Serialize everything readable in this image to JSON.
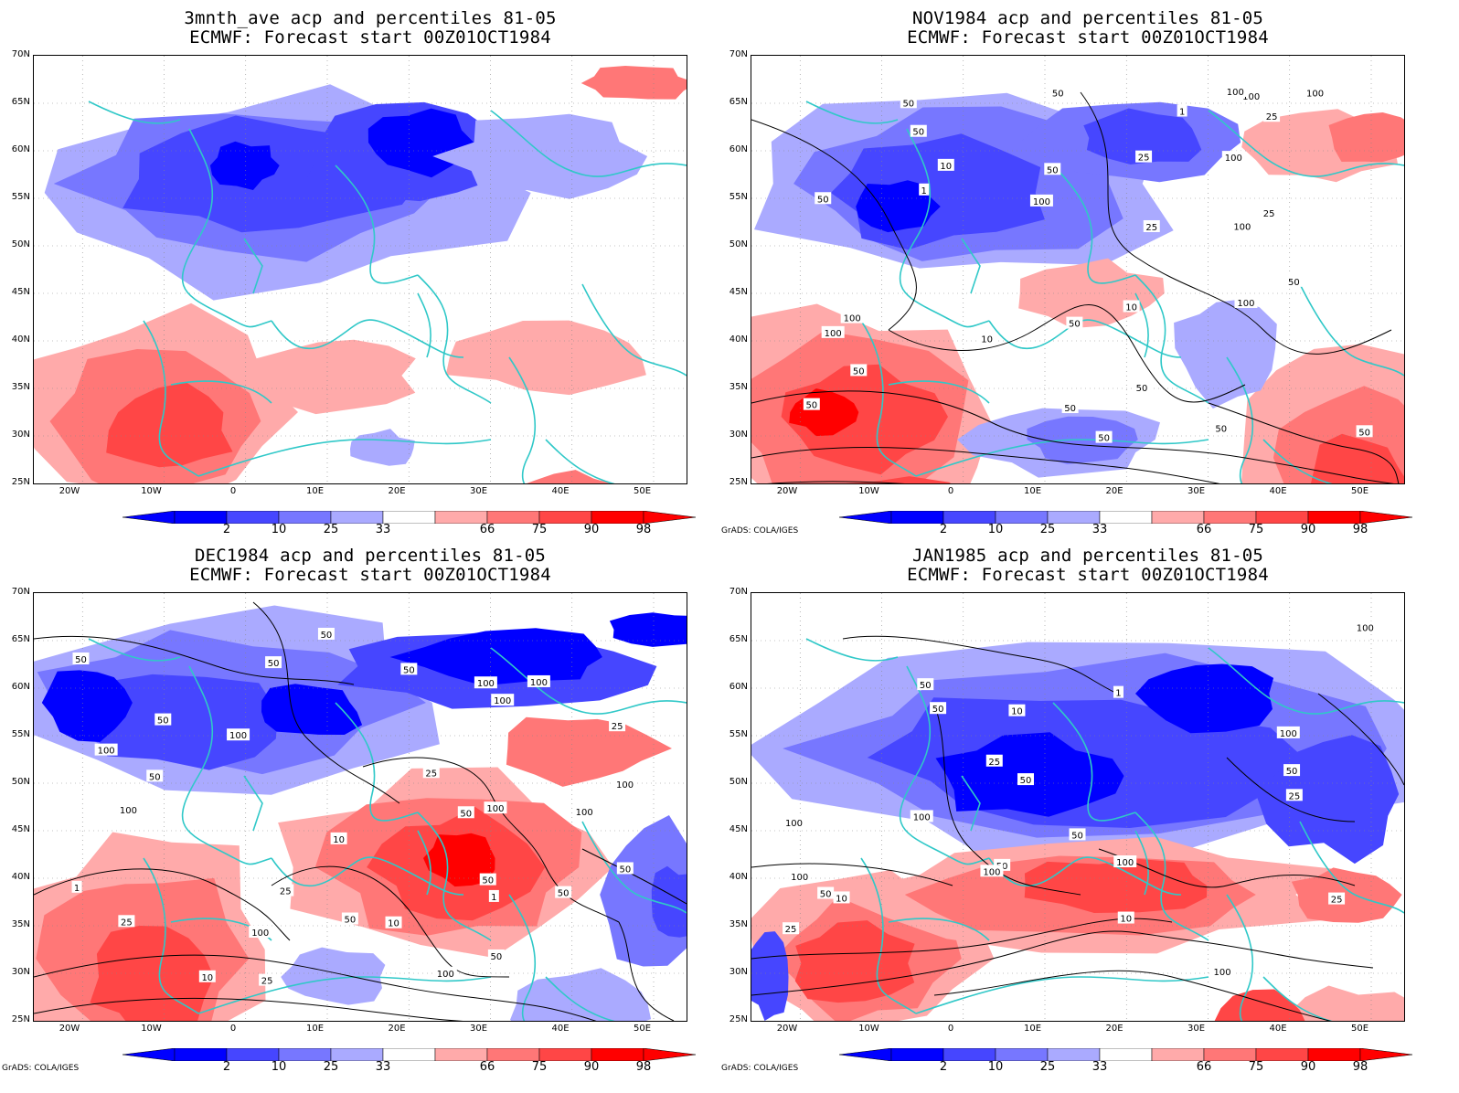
{
  "colors": {
    "blue_dark": "#0000ff",
    "blue_mid": "#4646ff",
    "blue_light": "#7777ff",
    "blue_pale": "#aaaaff",
    "red_pale": "#ffaaaa",
    "red_light": "#ff7777",
    "red_mid": "#ff4646",
    "red_dark": "#ff0000",
    "coast": "#30c8c8",
    "contour": "#000000"
  },
  "lat_labels": [
    "70N",
    "65N",
    "60N",
    "55N",
    "50N",
    "45N",
    "40N",
    "35N",
    "30N",
    "25N"
  ],
  "lon_labels": [
    "20W",
    "10W",
    "0",
    "10E",
    "20E",
    "30E",
    "40E",
    "50E"
  ],
  "colorbar_labels": [
    "2",
    "10",
    "25",
    "33",
    "66",
    "75",
    "90",
    "98"
  ],
  "credit": "GrADS: COLA/IGES",
  "panels": [
    {
      "title1": "3mnth_ave acp and percentiles 81-05",
      "title2": "ECMWF: Forecast start 00Z01OCT1984",
      "show_credit": false,
      "contour_labels": []
    },
    {
      "title1": "NOV1984 acp and percentiles 81-05",
      "title2": "ECMWF: Forecast start 00Z01OCT1984",
      "show_credit": true,
      "contour_labels": [
        "100",
        "50",
        "50",
        "50",
        "100",
        "50",
        "50",
        "100",
        "50",
        "100",
        "50",
        "100",
        "100",
        "100",
        "50",
        "100",
        "50",
        "50",
        "100",
        "50",
        "25",
        "50",
        "10",
        "25",
        "50",
        "25",
        "10",
        "10",
        "1",
        "1",
        "50",
        "25"
      ]
    },
    {
      "title1": "DEC1984 acp and percentiles 81-05",
      "title2": "ECMWF: Forecast start 00Z01OCT1984",
      "show_credit": true,
      "contour_labels": [
        "100",
        "50",
        "100",
        "50",
        "100",
        "50",
        "50",
        "50",
        "100",
        "50",
        "25",
        "50",
        "100",
        "100",
        "100",
        "100",
        "100",
        "25",
        "10",
        "50",
        "25",
        "50",
        "100",
        "50",
        "10",
        "50",
        "10",
        "25",
        "50",
        "1",
        "1",
        "25",
        "100"
      ]
    },
    {
      "title1": "JAN1985 acp and percentiles 81-05",
      "title2": "ECMWF: Forecast start 00Z01OCT1984",
      "show_credit": true,
      "contour_labels": [
        "100",
        "100",
        "50",
        "100",
        "25",
        "100",
        "50",
        "100",
        "100",
        "50",
        "100",
        "50",
        "50",
        "25",
        "10",
        "100",
        "50",
        "10",
        "10",
        "25",
        "50",
        "25",
        "1"
      ]
    }
  ]
}
